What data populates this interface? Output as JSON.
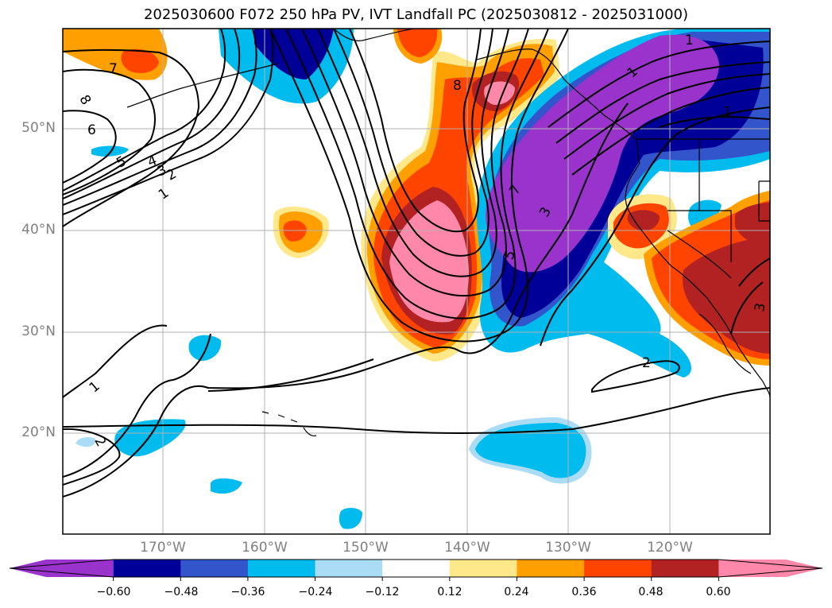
{
  "title": "2025030600 F072 250 hPa PV, IVT Landfall PC (2025030812 - 2025031000)",
  "map": {
    "lat_labels": [
      "50°N",
      "40°N",
      "30°N",
      "20°N"
    ],
    "lon_labels": [
      "170°W",
      "160°W",
      "150°W",
      "140°W",
      "130°W",
      "120°W"
    ],
    "contour_labels": [
      "7",
      "8",
      "6",
      "5",
      "4",
      "3",
      "2",
      "1",
      "8",
      "1",
      "1",
      "7",
      "3",
      "5",
      "1",
      "2",
      "2",
      "1",
      "3"
    ]
  },
  "colorbar": {
    "ticks": [
      "−0.60",
      "−0.48",
      "−0.36",
      "−0.24",
      "−0.12",
      "0.12",
      "0.24",
      "0.36",
      "0.48",
      "0.60"
    ],
    "colors": [
      "#9933cc",
      "#000099",
      "#3355cc",
      "#00bbee",
      "#aaddf5",
      "#ffffff",
      "#ffe88a",
      "#ff9f00",
      "#ff4400",
      "#b22222",
      "#ff88aa"
    ]
  }
}
